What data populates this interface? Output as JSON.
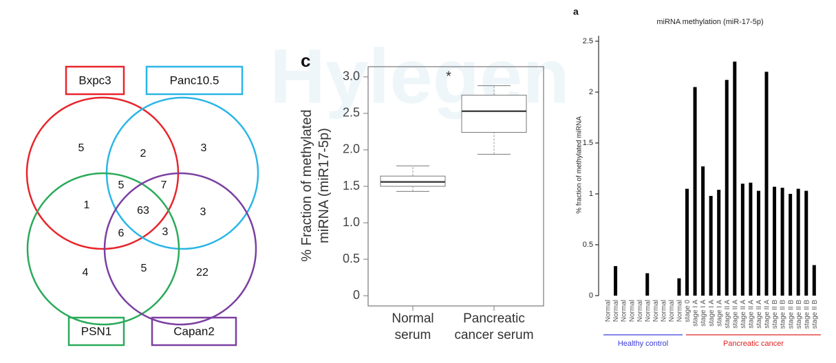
{
  "watermark": "Hylegen",
  "chart_data": [
    {
      "type": "venn",
      "sets": [
        {
          "name": "Bxpc3",
          "color": "#e8242b"
        },
        {
          "name": "Panc10.5",
          "color": "#2ab6e6"
        },
        {
          "name": "PSN1",
          "color": "#2aaa5a"
        },
        {
          "name": "Capan2",
          "color": "#7b3fa0"
        }
      ],
      "regions": [
        5,
        2,
        3,
        5,
        7,
        1,
        63,
        3,
        6,
        3,
        4,
        5,
        22
      ]
    },
    {
      "type": "box",
      "panel": "c",
      "ylabel": "% Fraction of methylated miRNA (miR17-5p)",
      "categories": [
        "Normal serum",
        "Pancreatic cancer serum"
      ],
      "boxes": [
        {
          "min": 1.43,
          "q1": 1.5,
          "median": 1.56,
          "q3": 1.64,
          "max": 1.78
        },
        {
          "min": 1.94,
          "q1": 2.24,
          "median": 2.53,
          "q3": 2.75,
          "max": 2.88
        }
      ],
      "annotation": "*",
      "ylim": [
        -0.14,
        3.14
      ],
      "yticks": [
        0,
        0.5,
        {
          "value": 1,
          "label": "1.0"
        },
        1.5,
        {
          "value": 2,
          "label": "2.0"
        },
        2.5,
        {
          "value": 3,
          "label": "3.0"
        }
      ]
    },
    {
      "type": "bar",
      "panel": "a",
      "title": "miRNA methylation (miR-17-5p)",
      "ylabel": "% fraction of methylated miRNA",
      "categories": [
        "Normal",
        "Normal",
        "Normal",
        "Normal",
        "Normal",
        "Normal",
        "Normal",
        "Normal",
        "Normal",
        "Normal",
        "stage 0",
        "stage I A",
        "stage I A",
        "stage I A",
        "stage I A",
        "stage II A",
        "stage II A",
        "stage II A",
        "stage II A",
        "stage II A",
        "stage II A",
        "stage II B",
        "stage II B",
        "stage II B",
        "stage II B",
        "stage II B",
        "stage II B"
      ],
      "values": [
        0,
        0.29,
        0,
        0,
        0,
        0.22,
        0,
        0,
        0,
        0.17,
        1.05,
        2.05,
        1.27,
        0.98,
        1.04,
        2.12,
        2.3,
        1.1,
        1.11,
        1.03,
        2.2,
        1.07,
        1.06,
        1.0,
        1.05,
        1.03,
        0.3
      ],
      "color": "#000000",
      "groups": [
        {
          "name": "Healthy control",
          "color": "#3a3ad8"
        },
        {
          "name": "Pancreatic cancer",
          "color": "#e02020"
        }
      ],
      "ylim": [
        0,
        2.56
      ],
      "yticks": [
        0,
        0.5,
        1,
        1.5,
        2,
        2.5
      ]
    }
  ]
}
